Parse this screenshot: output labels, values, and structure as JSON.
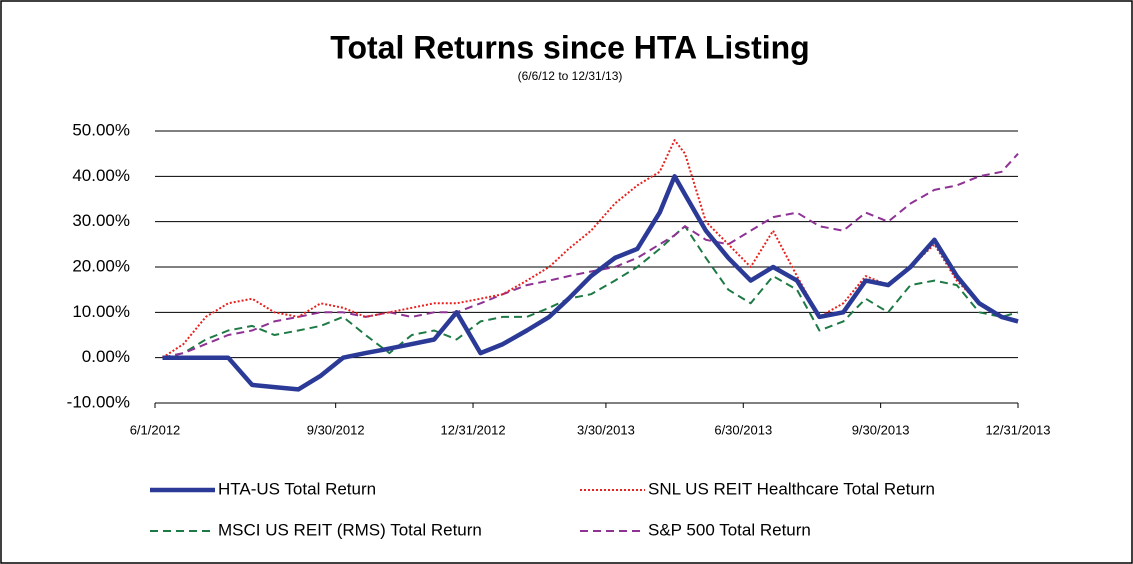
{
  "chart_data": {
    "type": "line",
    "title": "Total Returns since HTA Listing",
    "subtitle": "(6/6/12 to 12/31/13)",
    "x": [
      "6/6/2012",
      "6/20/2012",
      "7/5/2012",
      "7/20/2012",
      "8/5/2012",
      "8/20/2012",
      "9/5/2012",
      "9/20/2012",
      "10/5/2012",
      "10/20/2012",
      "11/5/2012",
      "11/20/2012",
      "12/5/2012",
      "12/20/2012",
      "1/5/2013",
      "1/20/2013",
      "2/5/2013",
      "2/20/2013",
      "3/5/2013",
      "3/20/2013",
      "4/5/2013",
      "4/20/2013",
      "5/5/2013",
      "5/15/2013",
      "5/22/2013",
      "6/5/2013",
      "6/20/2013",
      "7/5/2013",
      "7/20/2013",
      "8/5/2013",
      "8/20/2013",
      "9/5/2013",
      "9/20/2013",
      "10/5/2013",
      "10/20/2013",
      "11/5/2013",
      "11/20/2013",
      "12/5/2013",
      "12/20/2013",
      "12/31/2013"
    ],
    "series": [
      {
        "name": "HTA-US Total Return",
        "color": "#2b3a97",
        "dash": "solid",
        "width": 4.5,
        "values": [
          0,
          0,
          0,
          0,
          -6,
          -6.5,
          -7,
          -4,
          0,
          1,
          2,
          3,
          4,
          10,
          1,
          3,
          6,
          9,
          13,
          18,
          22,
          24,
          32,
          40,
          36,
          28,
          22,
          17,
          20,
          17,
          9,
          10,
          17,
          16,
          20,
          26,
          18,
          12,
          9,
          8
        ]
      },
      {
        "name": "SNL US REIT Healthcare Total Return",
        "color": "#e8211e",
        "dash": "dotted",
        "width": 2,
        "values": [
          0,
          3,
          9,
          12,
          13,
          10,
          9,
          12,
          11,
          9,
          10,
          11,
          12,
          12,
          13,
          14,
          17,
          20,
          24,
          28,
          34,
          38,
          41,
          48,
          45,
          30,
          25,
          20,
          28,
          18,
          9,
          12,
          18,
          16,
          20,
          25,
          17,
          12,
          9,
          8
        ]
      },
      {
        "name": "MSCI US REIT (RMS) Total Return",
        "color": "#1e7a45",
        "dash": "dashed",
        "width": 2,
        "values": [
          0,
          1,
          4,
          6,
          7,
          5,
          6,
          7,
          9,
          5,
          1,
          5,
          6,
          4,
          8,
          9,
          9,
          11,
          13,
          14,
          17,
          20,
          24,
          27,
          29,
          22,
          15,
          12,
          18,
          15,
          6,
          8,
          13,
          10,
          16,
          17,
          16,
          10,
          9,
          10
        ]
      },
      {
        "name": "S&P 500 Total Return",
        "color": "#8e3294",
        "dash": "dashed",
        "width": 2,
        "values": [
          0,
          1,
          3,
          5,
          6,
          8,
          9,
          10,
          10,
          9,
          10,
          9,
          10,
          10,
          12,
          14,
          16,
          17,
          18,
          19,
          20,
          22,
          25,
          27,
          29,
          26,
          25,
          28,
          31,
          32,
          29,
          28,
          32,
          30,
          34,
          37,
          38,
          40,
          41,
          45
        ]
      }
    ],
    "xlim": [
      "6/1/2012",
      "12/31/2013"
    ],
    "xticks": [
      "6/1/2012",
      "9/30/2012",
      "12/31/2012",
      "3/30/2013",
      "6/30/2013",
      "9/30/2013",
      "12/31/2013"
    ],
    "ylim": [
      -10,
      50
    ],
    "yticks": [
      {
        "value": -10,
        "label": "-10.00%"
      },
      {
        "value": 0,
        "label": "0.00%"
      },
      {
        "value": 10,
        "label": "10.00%"
      },
      {
        "value": 20,
        "label": "20.00%"
      },
      {
        "value": 30,
        "label": "30.00%"
      },
      {
        "value": 40,
        "label": "40.00%"
      },
      {
        "value": 50,
        "label": "50.00%"
      }
    ],
    "grid": true
  }
}
